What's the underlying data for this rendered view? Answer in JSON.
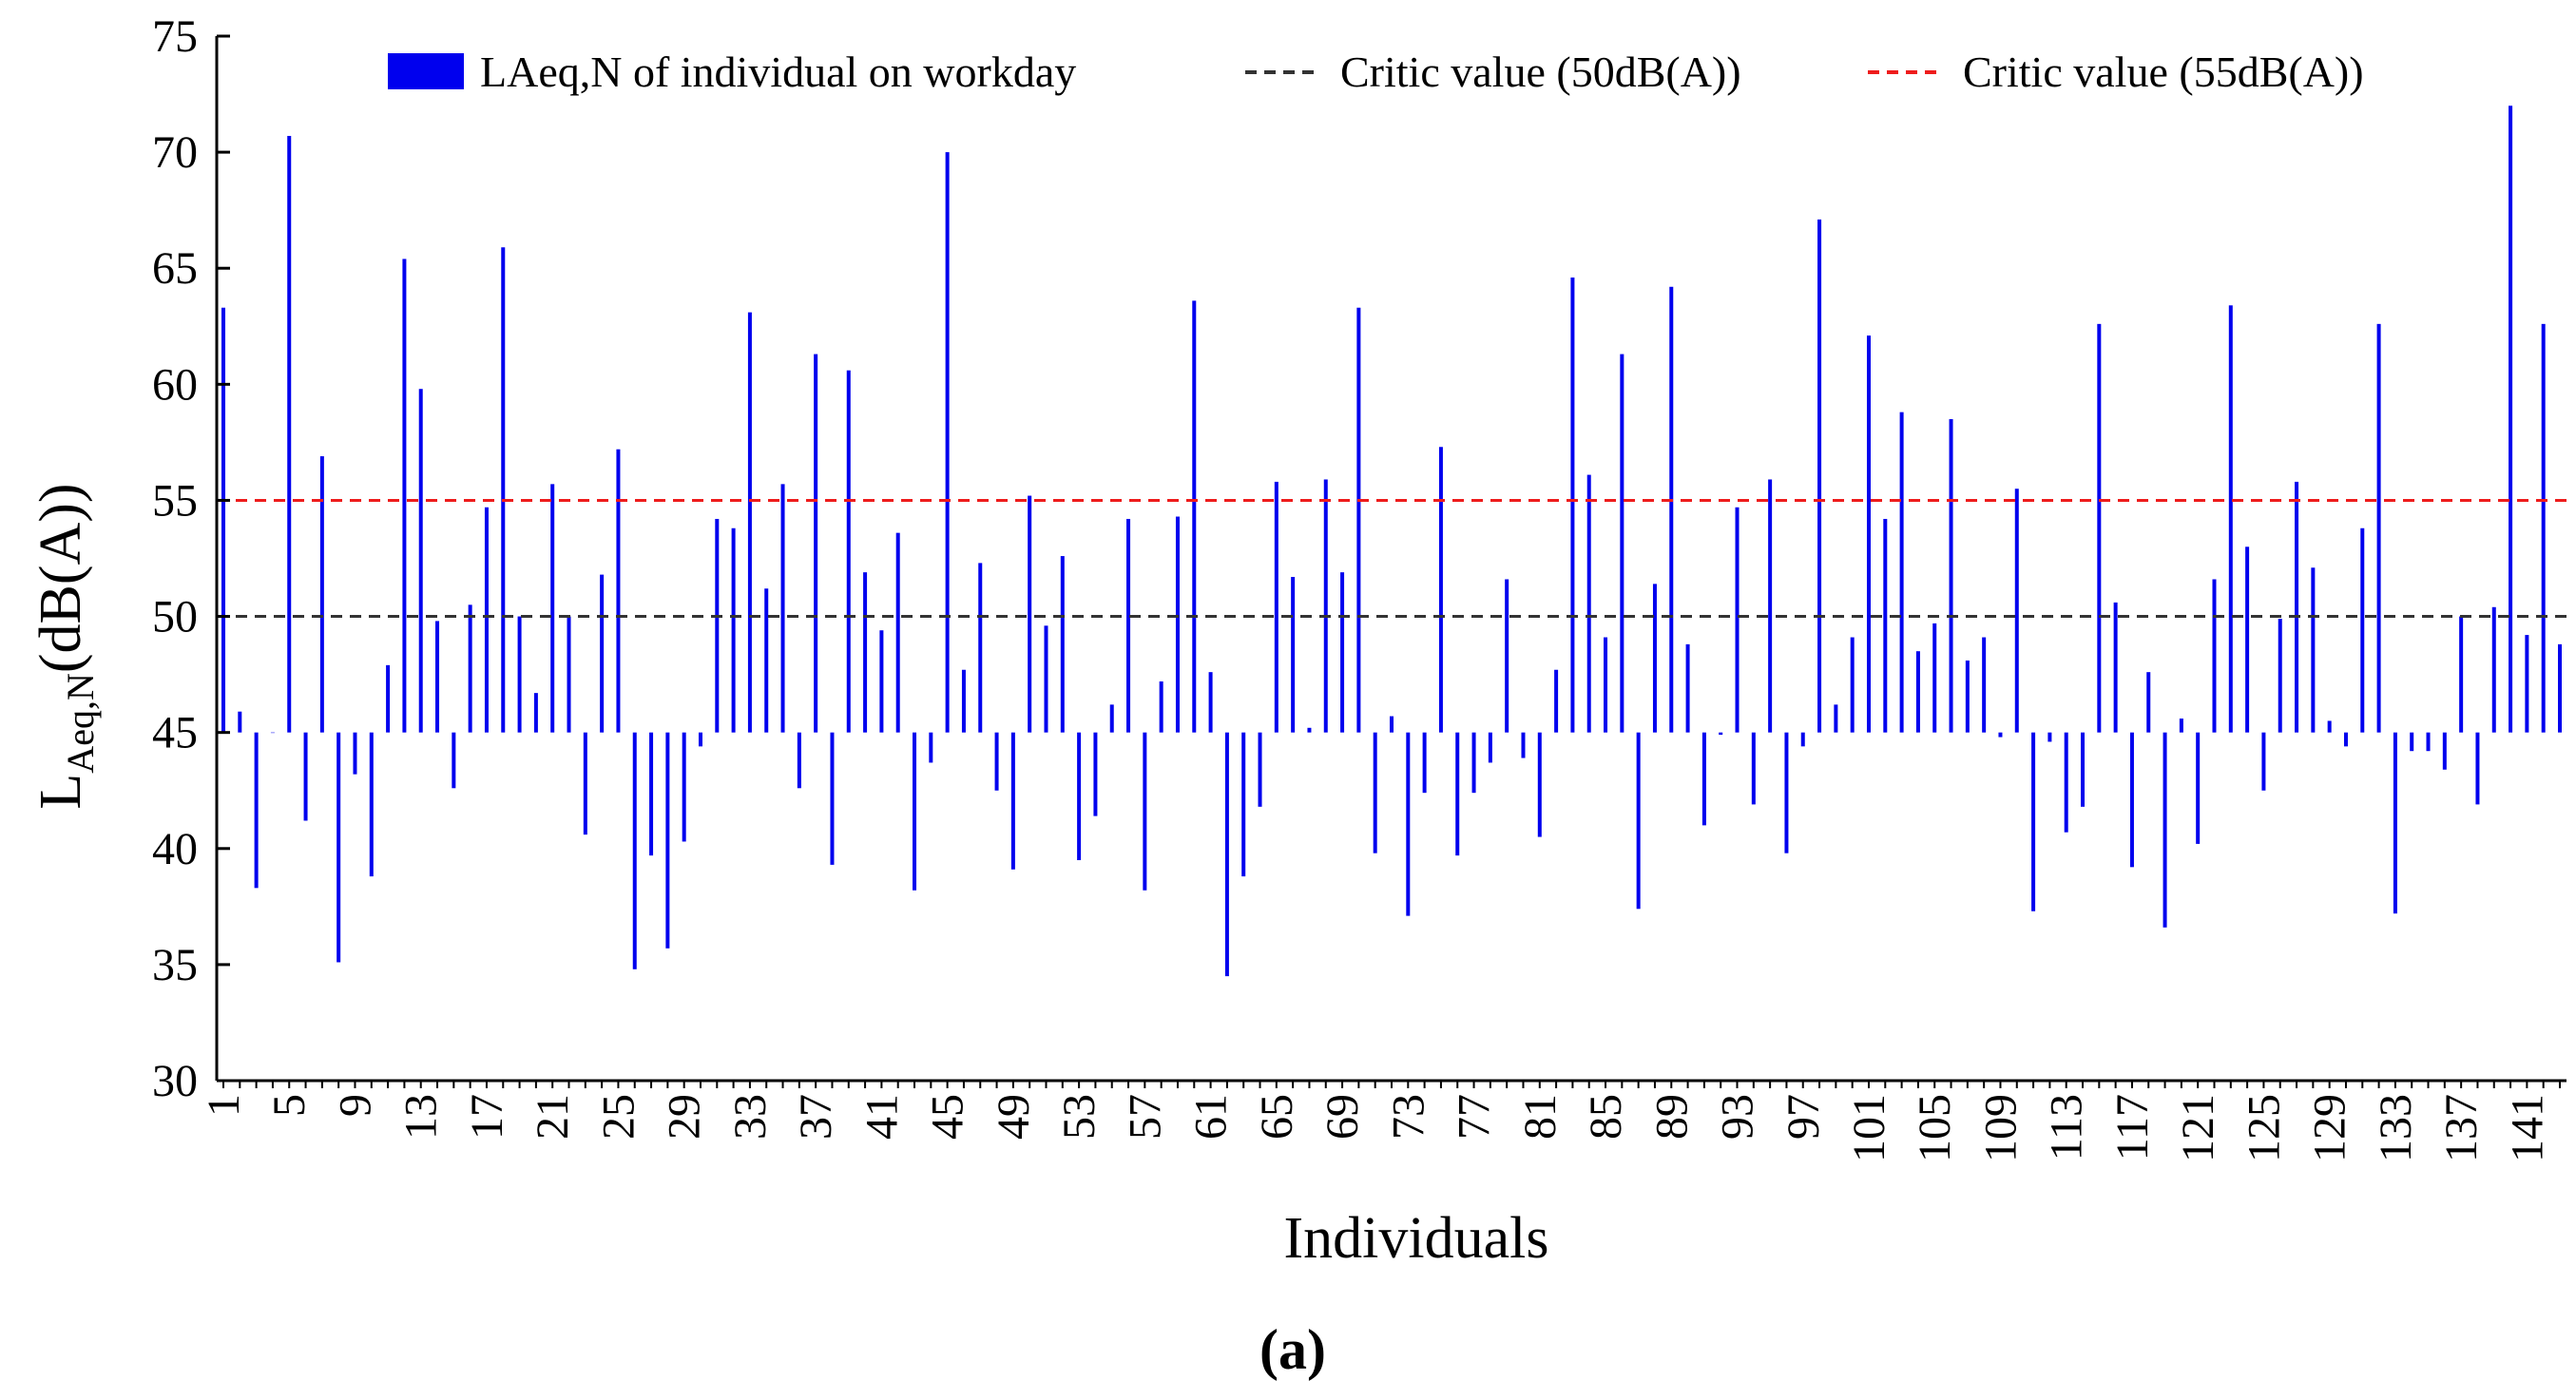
{
  "panel_label": "(a)",
  "colors": {
    "bar": "#0000ee",
    "line_50": "#333333",
    "line_55": "#ee1c1c",
    "axis": "#000000"
  },
  "chart_data": {
    "type": "bar",
    "baseline": 45,
    "ylim": [
      30,
      75
    ],
    "yticks": [
      30,
      35,
      40,
      45,
      50,
      55,
      60,
      65,
      70,
      75
    ],
    "xlabel": "Individuals",
    "ylabel": {
      "main": "L",
      "sub": "Aeq,N",
      "tail": "(dB(A))"
    },
    "xtick_labels": [
      "1",
      "5",
      "9",
      "13",
      "17",
      "21",
      "25",
      "29",
      "33",
      "37",
      "41",
      "45",
      "49",
      "53",
      "57",
      "61",
      "65",
      "69",
      "73",
      "77",
      "81",
      "85",
      "89",
      "93",
      "97",
      "101",
      "105",
      "109",
      "113",
      "117",
      "121",
      "125",
      "129",
      "133",
      "137",
      "141"
    ],
    "xtick_step": 4,
    "series": [
      {
        "name": "LAeq,N of individual on workday",
        "values": [
          63.3,
          45.9,
          38.3,
          45,
          70.7,
          41.2,
          56.9,
          35.1,
          43.2,
          38.8,
          47.9,
          65.4,
          59.8,
          49.8,
          42.6,
          50.5,
          54.7,
          65.9,
          50.0,
          46.7,
          55.7,
          50.0,
          40.6,
          51.8,
          57.2,
          34.8,
          39.7,
          35.7,
          40.3,
          44.4,
          54.2,
          53.8,
          63.1,
          51.2,
          55.7,
          42.6,
          61.3,
          39.3,
          60.6,
          51.9,
          49.4,
          53.6,
          38.2,
          43.7,
          70.0,
          47.7,
          52.3,
          42.5,
          39.1,
          55.2,
          49.6,
          52.6,
          39.5,
          41.4,
          46.2,
          54.2,
          38.2,
          47.2,
          54.3,
          63.6,
          47.6,
          34.5,
          38.8,
          41.8,
          55.8,
          51.7,
          45.2,
          55.9,
          51.9,
          63.3,
          39.8,
          45.7,
          37.1,
          42.4,
          57.3,
          39.7,
          42.4,
          43.7,
          51.6,
          43.9,
          40.5,
          47.7,
          64.6,
          56.1,
          49.1,
          61.3,
          37.4,
          51.4,
          64.2,
          48.8,
          41.0,
          44.9,
          54.7,
          41.9,
          55.9,
          39.8,
          44.4,
          67.1,
          46.2,
          49.1,
          62.1,
          54.2,
          58.8,
          48.5,
          49.7,
          58.5,
          48.1,
          49.1,
          44.8,
          55.5,
          37.3,
          44.6,
          40.7,
          41.8,
          62.6,
          50.6,
          39.2,
          47.6,
          36.6,
          45.6,
          40.2,
          51.6,
          63.4,
          53.0,
          42.5,
          49.9,
          55.8,
          52.1,
          45.5,
          44.4,
          53.8,
          62.6,
          37.2,
          44.2,
          44.2,
          43.4,
          50.0,
          41.9,
          50.4,
          72.0,
          49.2,
          62.6,
          48.8
        ]
      }
    ],
    "reference_lines": [
      {
        "name": "Critic value (50dB(A))",
        "y": 50,
        "style": "dashed"
      },
      {
        "name": "Critic value (55dB(A))",
        "y": 55,
        "style": "dashed"
      }
    ],
    "legend": {
      "position": "top",
      "entries": [
        "LAeq,N of individual on workday",
        "Critic value (50dB(A))",
        "Critic value (55dB(A))"
      ]
    }
  }
}
